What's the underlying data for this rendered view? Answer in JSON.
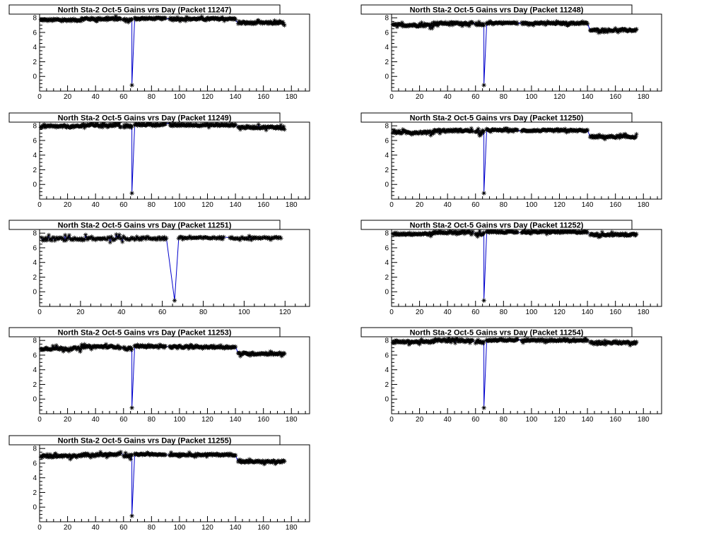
{
  "colors": {
    "line": "#0000cc",
    "marker": "#000000",
    "frame": "#000000",
    "background": "#ffffff"
  },
  "chart_data": [
    {
      "type": "line",
      "title": "North Sta-2 Oct-5 Gains vrs Day (Packet 11247)",
      "xlim": [
        0,
        193
      ],
      "ylim": [
        -2,
        8.5
      ],
      "xticks": [
        0,
        20,
        40,
        60,
        80,
        100,
        120,
        140,
        160,
        180
      ],
      "yticks": [
        0,
        2,
        4,
        6,
        8
      ],
      "segments": [
        {
          "x": [
            1,
            30
          ],
          "y": 7.7,
          "noise": 0.3
        },
        {
          "x": [
            30,
            58
          ],
          "y": 7.85,
          "noise": 0.3
        },
        {
          "x": [
            60,
            66
          ],
          "y": 7.7,
          "noise": 0.4
        },
        {
          "x": [
            68,
            90
          ],
          "y": 7.9,
          "noise": 0.2
        },
        {
          "x": [
            93,
            140
          ],
          "y": 7.85,
          "noise": 0.25
        },
        {
          "x": [
            142,
            175
          ],
          "y": 7.3,
          "noise": 0.3
        }
      ],
      "dip": {
        "x": 66,
        "y": -1.2
      },
      "name": "",
      "xlabel": "",
      "ylabel": "",
      "grid": false
    },
    {
      "type": "line",
      "title": "North Sta-2 Oct-5 Gains vrs Day (Packet 11248)",
      "xlim": [
        0,
        193
      ],
      "ylim": [
        -2,
        8.5
      ],
      "xticks": [
        0,
        20,
        40,
        60,
        80,
        100,
        120,
        140,
        160,
        180
      ],
      "yticks": [
        0,
        2,
        4,
        6,
        8
      ],
      "segments": [
        {
          "x": [
            1,
            30
          ],
          "y": 7.0,
          "noise": 0.35
        },
        {
          "x": [
            30,
            58
          ],
          "y": 7.25,
          "noise": 0.3
        },
        {
          "x": [
            60,
            66
          ],
          "y": 7.0,
          "noise": 0.4
        },
        {
          "x": [
            68,
            90
          ],
          "y": 7.3,
          "noise": 0.2
        },
        {
          "x": [
            93,
            140
          ],
          "y": 7.25,
          "noise": 0.25
        },
        {
          "x": [
            142,
            175
          ],
          "y": 6.3,
          "noise": 0.3
        }
      ],
      "dip": {
        "x": 66,
        "y": -1.2
      },
      "xlabel": "",
      "ylabel": "",
      "grid": false
    },
    {
      "type": "line",
      "title": "North Sta-2 Oct-5 Gains vrs Day (Packet 11249)",
      "xlim": [
        0,
        193
      ],
      "ylim": [
        -2,
        8.5
      ],
      "xticks": [
        0,
        20,
        40,
        60,
        80,
        100,
        120,
        140,
        160,
        180
      ],
      "yticks": [
        0,
        2,
        4,
        6,
        8
      ],
      "segments": [
        {
          "x": [
            1,
            30
          ],
          "y": 7.9,
          "noise": 0.3
        },
        {
          "x": [
            30,
            58
          ],
          "y": 8.1,
          "noise": 0.3
        },
        {
          "x": [
            60,
            66
          ],
          "y": 7.9,
          "noise": 0.4
        },
        {
          "x": [
            68,
            90
          ],
          "y": 8.15,
          "noise": 0.2
        },
        {
          "x": [
            93,
            140
          ],
          "y": 8.1,
          "noise": 0.25
        },
        {
          "x": [
            142,
            175
          ],
          "y": 7.8,
          "noise": 0.3
        }
      ],
      "dip": {
        "x": 66,
        "y": -1.2
      },
      "xlabel": "",
      "ylabel": "",
      "grid": false
    },
    {
      "type": "line",
      "title": "North Sta-2 Oct-5 Gains vrs Day (Packet 11250)",
      "xlim": [
        0,
        193
      ],
      "ylim": [
        -2,
        8.5
      ],
      "xticks": [
        0,
        20,
        40,
        60,
        80,
        100,
        120,
        140,
        160,
        180
      ],
      "yticks": [
        0,
        2,
        4,
        6,
        8
      ],
      "segments": [
        {
          "x": [
            1,
            30
          ],
          "y": 7.1,
          "noise": 0.35
        },
        {
          "x": [
            30,
            58
          ],
          "y": 7.35,
          "noise": 0.3
        },
        {
          "x": [
            60,
            66
          ],
          "y": 7.1,
          "noise": 0.4
        },
        {
          "x": [
            68,
            90
          ],
          "y": 7.4,
          "noise": 0.2
        },
        {
          "x": [
            93,
            140
          ],
          "y": 7.35,
          "noise": 0.25
        },
        {
          "x": [
            142,
            175
          ],
          "y": 6.5,
          "noise": 0.3
        }
      ],
      "dip": {
        "x": 66,
        "y": -1.2
      },
      "xlabel": "",
      "ylabel": "",
      "grid": false
    },
    {
      "type": "line",
      "title": "North Sta-2 Oct-5 Gains vrs Day (Packet 11251)",
      "xlim": [
        0,
        132
      ],
      "ylim": [
        -2,
        8.5
      ],
      "xticks": [
        0,
        20,
        40,
        60,
        80,
        100,
        120
      ],
      "yticks": [
        0,
        2,
        4,
        6,
        8
      ],
      "segments": [
        {
          "x": [
            1,
            30
          ],
          "y": 7.2,
          "noise": 0.45
        },
        {
          "x": [
            30,
            62
          ],
          "y": 7.3,
          "noise": 0.45
        },
        {
          "x": [
            68,
            90
          ],
          "y": 7.35,
          "noise": 0.25
        },
        {
          "x": [
            93,
            118
          ],
          "y": 7.35,
          "noise": 0.25
        }
      ],
      "dip": {
        "x": 66,
        "y": -1.2
      },
      "xlabel": "",
      "ylabel": "",
      "grid": false
    },
    {
      "type": "line",
      "title": "North Sta-2 Oct-5 Gains vrs Day (Packet 11252)",
      "xlim": [
        0,
        193
      ],
      "ylim": [
        -2,
        8.5
      ],
      "xticks": [
        0,
        20,
        40,
        60,
        80,
        100,
        120,
        140,
        160,
        180
      ],
      "yticks": [
        0,
        2,
        4,
        6,
        8
      ],
      "segments": [
        {
          "x": [
            1,
            30
          ],
          "y": 7.9,
          "noise": 0.3
        },
        {
          "x": [
            30,
            58
          ],
          "y": 8.1,
          "noise": 0.3
        },
        {
          "x": [
            60,
            66
          ],
          "y": 7.9,
          "noise": 0.4
        },
        {
          "x": [
            68,
            90
          ],
          "y": 8.15,
          "noise": 0.2
        },
        {
          "x": [
            93,
            140
          ],
          "y": 8.15,
          "noise": 0.25
        },
        {
          "x": [
            142,
            175
          ],
          "y": 7.8,
          "noise": 0.3
        }
      ],
      "dip": {
        "x": 66,
        "y": -1.2
      },
      "xlabel": "",
      "ylabel": "",
      "grid": false
    },
    {
      "type": "line",
      "title": "North Sta-2 Oct-5 Gains vrs Day (Packet 11253)",
      "xlim": [
        0,
        193
      ],
      "ylim": [
        -2,
        8.5
      ],
      "xticks": [
        0,
        20,
        40,
        60,
        80,
        100,
        120,
        140,
        160,
        180
      ],
      "yticks": [
        0,
        2,
        4,
        6,
        8
      ],
      "segments": [
        {
          "x": [
            1,
            30
          ],
          "y": 6.9,
          "noise": 0.35
        },
        {
          "x": [
            30,
            58
          ],
          "y": 7.15,
          "noise": 0.3
        },
        {
          "x": [
            60,
            66
          ],
          "y": 6.9,
          "noise": 0.4
        },
        {
          "x": [
            68,
            90
          ],
          "y": 7.2,
          "noise": 0.2
        },
        {
          "x": [
            93,
            140
          ],
          "y": 7.1,
          "noise": 0.25
        },
        {
          "x": [
            142,
            175
          ],
          "y": 6.2,
          "noise": 0.3
        }
      ],
      "dip": {
        "x": 66,
        "y": -1.2
      },
      "xlabel": "",
      "ylabel": "",
      "grid": false
    },
    {
      "type": "line",
      "title": "North Sta-2 Oct-5 Gains vrs Day (Packet 11254)",
      "xlim": [
        0,
        193
      ],
      "ylim": [
        -2,
        8.5
      ],
      "xticks": [
        0,
        20,
        40,
        60,
        80,
        100,
        120,
        140,
        160,
        180
      ],
      "yticks": [
        0,
        2,
        4,
        6,
        8
      ],
      "segments": [
        {
          "x": [
            1,
            30
          ],
          "y": 7.8,
          "noise": 0.3
        },
        {
          "x": [
            30,
            58
          ],
          "y": 8.0,
          "noise": 0.3
        },
        {
          "x": [
            60,
            66
          ],
          "y": 7.8,
          "noise": 0.4
        },
        {
          "x": [
            68,
            90
          ],
          "y": 8.05,
          "noise": 0.2
        },
        {
          "x": [
            93,
            140
          ],
          "y": 8.0,
          "noise": 0.25
        },
        {
          "x": [
            142,
            175
          ],
          "y": 7.7,
          "noise": 0.3
        }
      ],
      "dip": {
        "x": 66,
        "y": -1.2
      },
      "xlabel": "",
      "ylabel": "",
      "grid": false
    },
    {
      "type": "line",
      "title": "North Sta-2 Oct-5 Gains vrs Day (Packet 11255)",
      "xlim": [
        0,
        193
      ],
      "ylim": [
        -2,
        8.5
      ],
      "xticks": [
        0,
        20,
        40,
        60,
        80,
        100,
        120,
        140,
        160,
        180
      ],
      "yticks": [
        0,
        2,
        4,
        6,
        8
      ],
      "segments": [
        {
          "x": [
            1,
            30
          ],
          "y": 6.95,
          "noise": 0.35
        },
        {
          "x": [
            30,
            58
          ],
          "y": 7.15,
          "noise": 0.3
        },
        {
          "x": [
            60,
            66
          ],
          "y": 6.95,
          "noise": 0.4
        },
        {
          "x": [
            68,
            90
          ],
          "y": 7.2,
          "noise": 0.2
        },
        {
          "x": [
            93,
            140
          ],
          "y": 7.15,
          "noise": 0.25
        },
        {
          "x": [
            142,
            175
          ],
          "y": 6.2,
          "noise": 0.3
        }
      ],
      "dip": {
        "x": 66,
        "y": -1.2
      },
      "xlabel": "",
      "ylabel": "",
      "grid": false
    }
  ]
}
